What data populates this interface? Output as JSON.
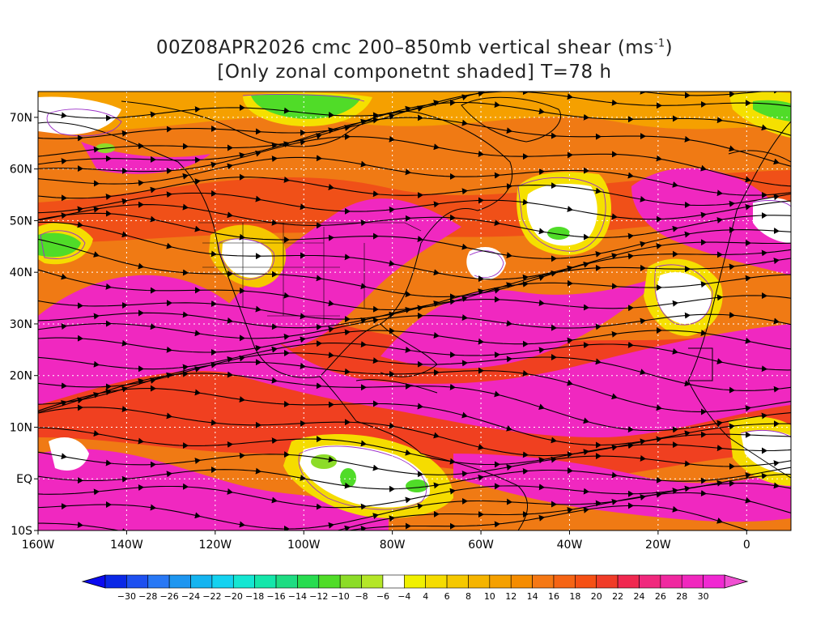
{
  "title": {
    "line1_prefix": "00Z08APR2026 cmc 200–850mb vertical shear (ms",
    "line1_unit_exp": "-1",
    "line1_suffix": ")",
    "line2": "[Only zonal componetnt shaded] T=78 h"
  },
  "map": {
    "lon_range": [
      -160,
      10
    ],
    "lat_range": [
      -10,
      75
    ],
    "x_ticks": [
      "160W",
      "140W",
      "120W",
      "100W",
      "80W",
      "60W",
      "40W",
      "20W",
      "0"
    ],
    "y_ticks": [
      "70N",
      "60N",
      "50N",
      "40N",
      "30N",
      "20N",
      "10N",
      "EQ",
      "10S"
    ]
  },
  "colorbar": {
    "labels": [
      "-30",
      "-28",
      "-26",
      "-24",
      "-22",
      "-20",
      "-18",
      "-16",
      "-14",
      "-12",
      "-10",
      "-8",
      "-6",
      "-4",
      "4",
      "6",
      "8",
      "10",
      "12",
      "14",
      "16",
      "18",
      "20",
      "22",
      "24",
      "26",
      "28",
      "30"
    ],
    "colors": [
      "#0a28e6",
      "#1e50f0",
      "#2878f5",
      "#1e96f0",
      "#14b4f0",
      "#14d2f0",
      "#14e6d2",
      "#14e6aa",
      "#1edc82",
      "#28dc50",
      "#50dc28",
      "#8cdc28",
      "#b4e628",
      "#ffffff",
      "#f0f000",
      "#f5dc00",
      "#f5c800",
      "#f5b400",
      "#f5a000",
      "#f58c00",
      "#f57814",
      "#f56414",
      "#f55014",
      "#f03c28",
      "#f02850",
      "#f0287d",
      "#f028a0",
      "#f028be",
      "#f028d2"
    ],
    "low_color": "#0a0af0",
    "high_color": "#f050d2"
  }
}
